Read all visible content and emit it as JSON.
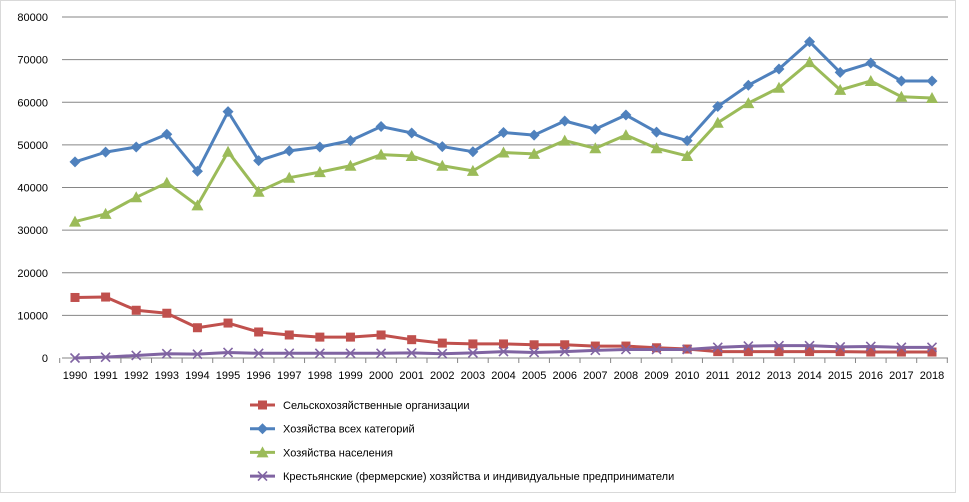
{
  "chart_data": {
    "type": "line",
    "categories": [
      "1990",
      "1991",
      "1992",
      "1993",
      "1994",
      "1995",
      "1996",
      "1997",
      "1998",
      "1999",
      "2000",
      "2001",
      "2002",
      "2003",
      "2004",
      "2005",
      "2006",
      "2007",
      "2008",
      "2009",
      "2010",
      "2011",
      "2012",
      "2013",
      "2014",
      "2015",
      "2016",
      "2017",
      "2018"
    ],
    "ylim": [
      0,
      80000
    ],
    "yticks": [
      "0",
      "10000",
      "20000",
      "30000",
      "40000",
      "50000",
      "60000",
      "70000",
      "80000"
    ],
    "grid": true,
    "legend": "bottom",
    "series": [
      {
        "name": "Сельскохозяйственные организации",
        "color": "#C0504D",
        "marker": "square",
        "values": [
          14200,
          14300,
          11200,
          10500,
          7100,
          8200,
          6100,
          5400,
          4900,
          4900,
          5400,
          4300,
          3500,
          3300,
          3300,
          3100,
          3100,
          2800,
          2800,
          2400,
          2100,
          1500,
          1500,
          1500,
          1500,
          1500,
          1400,
          1400,
          1400
        ]
      },
      {
        "name": "Хозяйства всех категорий",
        "color": "#4F81BD",
        "marker": "diamond",
        "values": [
          46000,
          48300,
          49500,
          52500,
          43800,
          57800,
          46300,
          48600,
          49500,
          51000,
          54300,
          52800,
          49600,
          48400,
          52900,
          52300,
          55600,
          53700,
          57000,
          53000,
          51000,
          59000,
          64000,
          67800,
          74200,
          67000,
          69200,
          65000,
          65000
        ]
      },
      {
        "name": "Хозяйства населения",
        "color": "#9BBB59",
        "marker": "triangle",
        "values": [
          32000,
          33800,
          37700,
          41100,
          35800,
          48400,
          39000,
          42300,
          43600,
          45100,
          47700,
          47400,
          45100,
          43900,
          48200,
          47900,
          51000,
          49200,
          52300,
          49200,
          47400,
          55200,
          59800,
          63400,
          69400,
          62900,
          65000,
          61300,
          61000
        ]
      },
      {
        "name": "Крестьянские (фермерские) хозяйства и индивидуальные предприниматели",
        "color": "#8064A2",
        "marker": "x",
        "values": [
          0,
          200,
          600,
          1000,
          900,
          1300,
          1100,
          1100,
          1100,
          1100,
          1100,
          1200,
          1000,
          1200,
          1500,
          1300,
          1500,
          1800,
          2000,
          2000,
          2000,
          2500,
          2800,
          2900,
          2900,
          2600,
          2700,
          2500,
          2500
        ]
      }
    ]
  }
}
